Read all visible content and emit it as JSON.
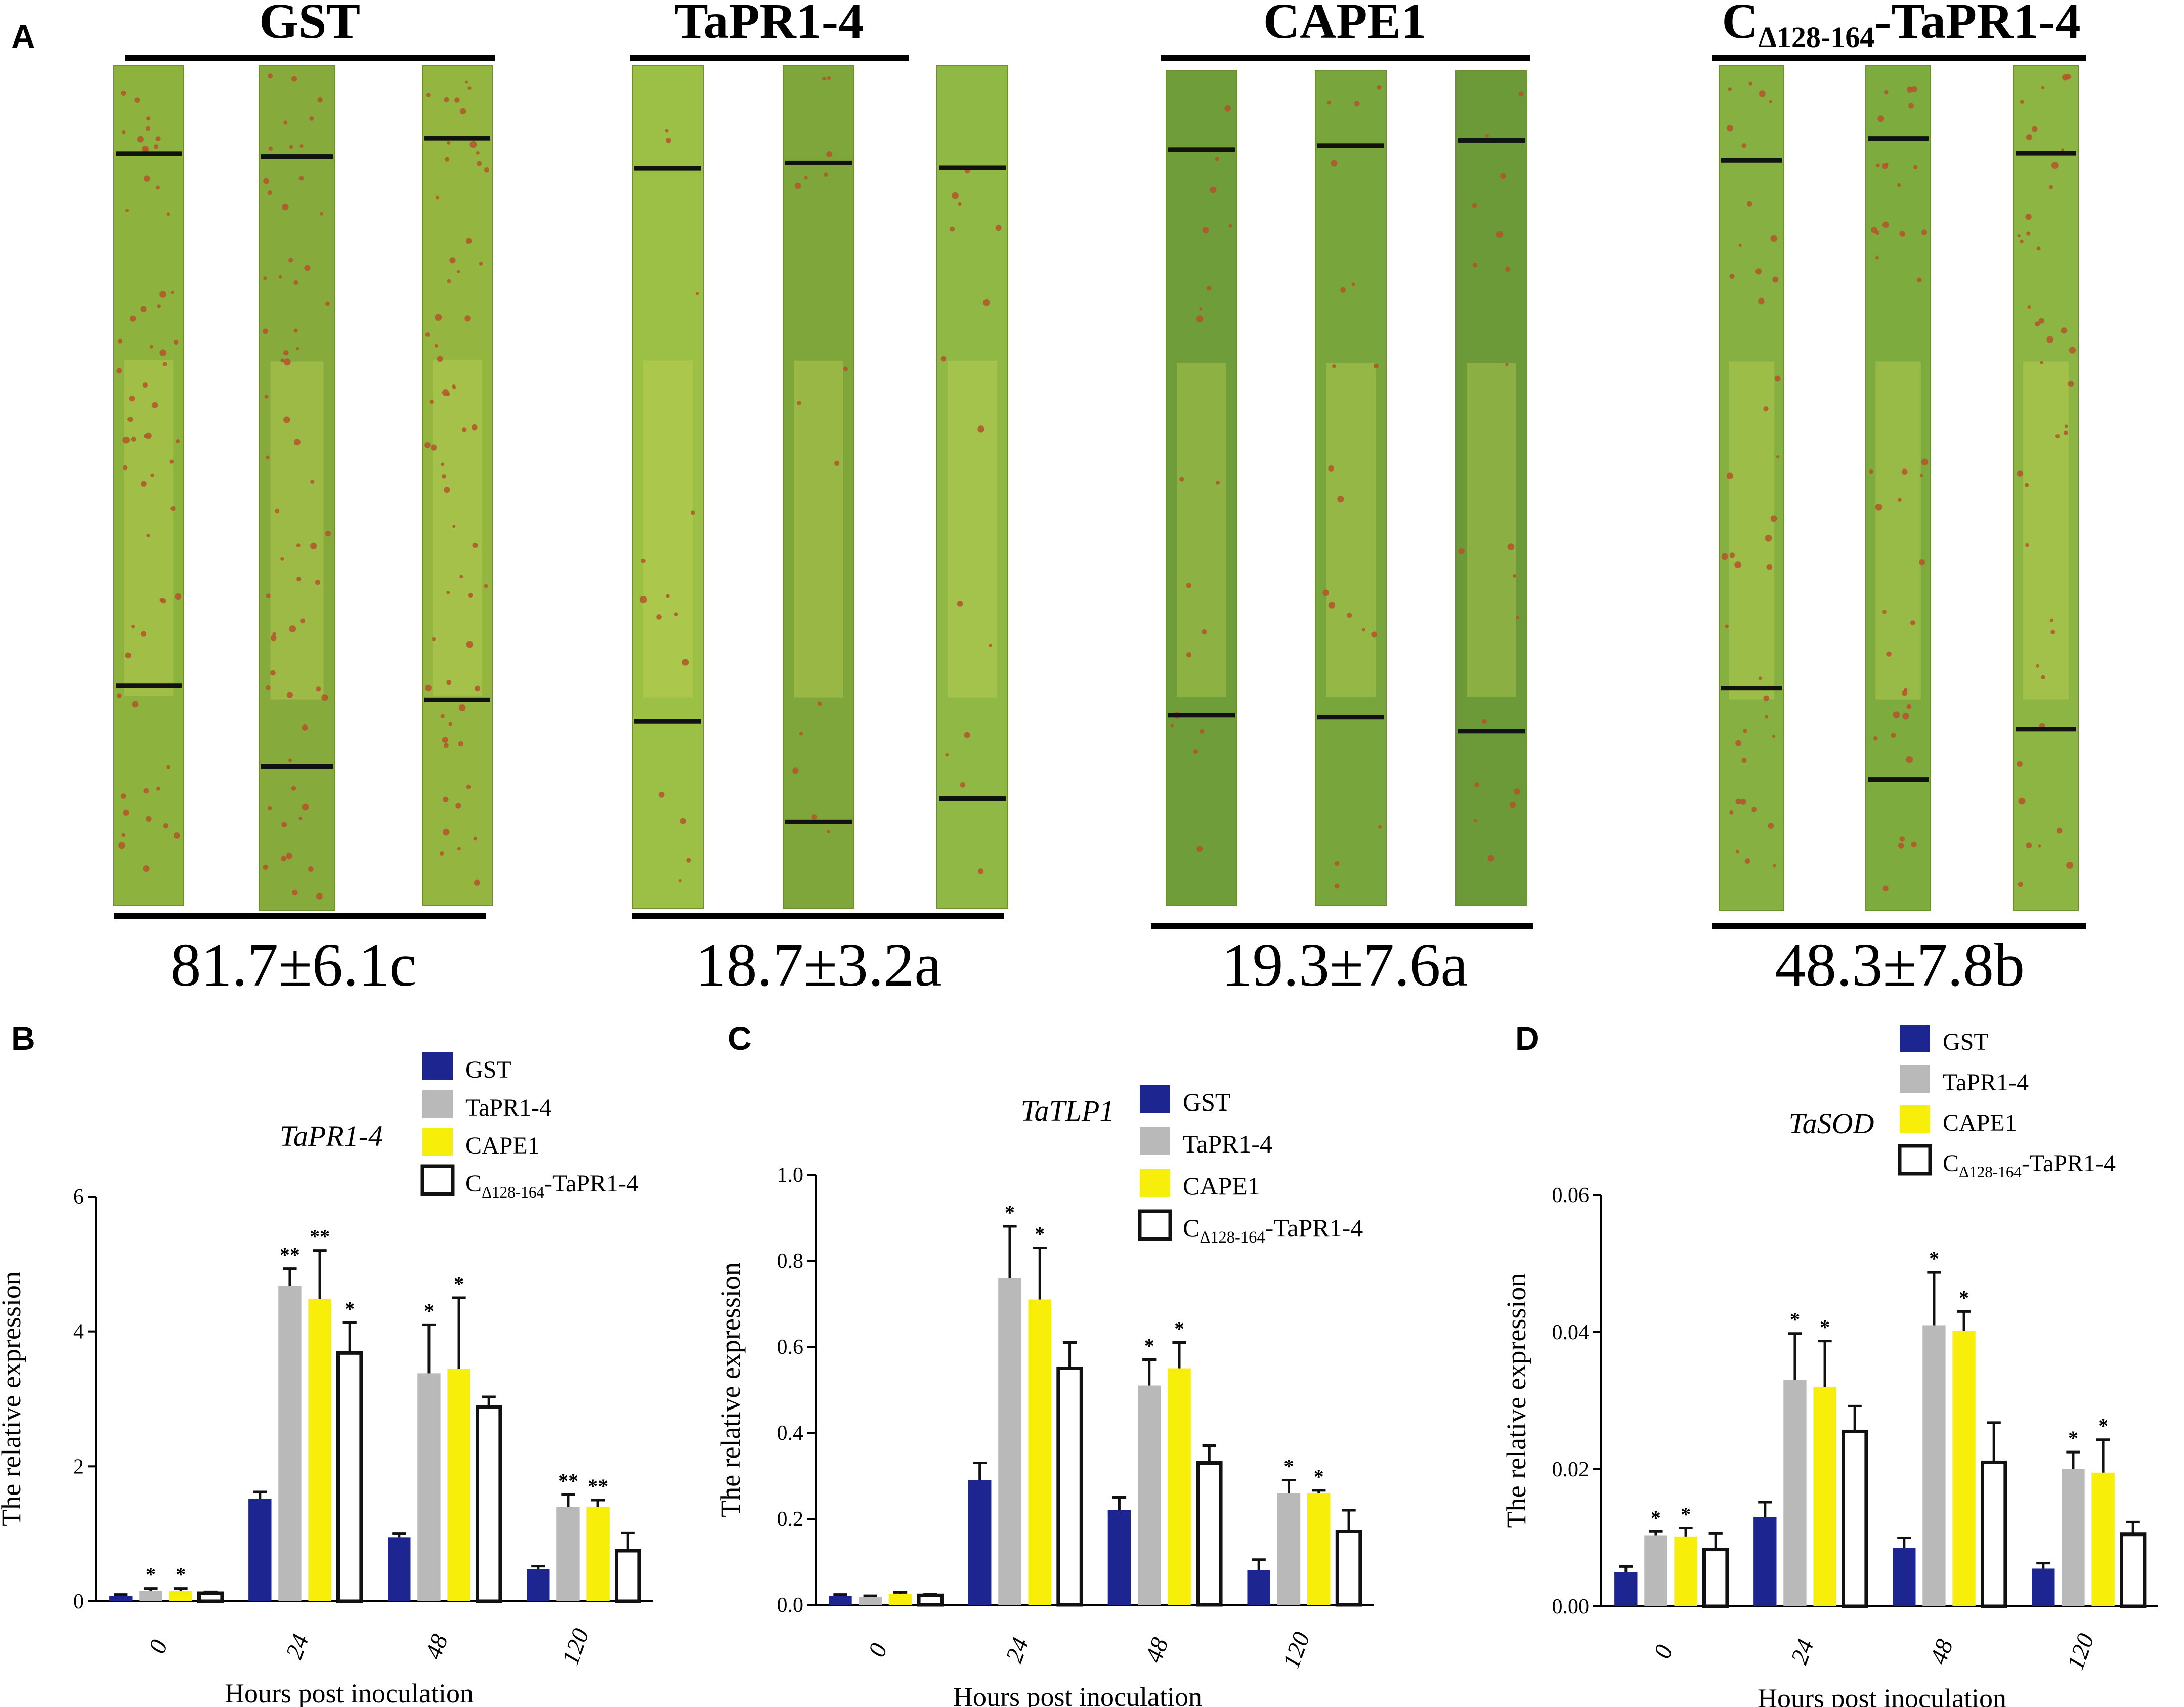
{
  "panel_labels": {
    "a": "A",
    "b": "B",
    "c": "C",
    "d": "D"
  },
  "panel_a": {
    "groups": [
      {
        "title": "GST",
        "score": "81.7±6.1c",
        "leaf_colors": [
          "#8db23e",
          "#86aa3c",
          "#94b641"
        ]
      },
      {
        "title": "TaPR1-4",
        "score": "18.7±3.2a",
        "leaf_colors": [
          "#9cc046",
          "#7fa63a",
          "#8fb845"
        ]
      },
      {
        "title": "CAPE1",
        "score": "19.3±7.6a",
        "leaf_colors": [
          "#6f9d3a",
          "#78a63c",
          "#6c9a38"
        ]
      },
      {
        "title_main": "C",
        "title_sub": "Δ128-164",
        "title_rest": "-TaPR1-4",
        "score": "48.3±7.8b",
        "leaf_colors": [
          "#86b041",
          "#7eab3e",
          "#8cb544"
        ]
      }
    ]
  },
  "colors": {
    "GST": "#1c2590",
    "TaPR1-4": "#b9b9b9",
    "CAPE1": "#f7ef0a",
    "Cdel": "#ffffff",
    "leaf_lesion": "#b5522a",
    "leaf_mark": "#111111"
  },
  "legend_labels": {
    "gst": "GST",
    "tapr": "TaPR1-4",
    "cape": "CAPE1",
    "cdel_main": "C",
    "cdel_sub": "Δ128-164",
    "cdel_rest": "-TaPR1-4"
  },
  "chart_data": [
    {
      "type": "bar",
      "panel": "B",
      "title": "TaPR1-4",
      "xlabel": "Hours post inoculation",
      "ylabel": "The relative expression",
      "categories": [
        "0",
        "24",
        "48",
        "120"
      ],
      "ylim": [
        0,
        6
      ],
      "yticks": [
        "0",
        "2",
        "4",
        "6"
      ],
      "series": [
        {
          "name": "GST",
          "values": [
            0.08,
            1.52,
            0.95,
            0.48
          ],
          "errors": [
            0.02,
            0.1,
            0.05,
            0.04
          ],
          "sig": [
            "",
            "",
            "",
            ""
          ]
        },
        {
          "name": "TaPR1-4",
          "values": [
            0.15,
            4.68,
            3.38,
            1.4
          ],
          "errors": [
            0.04,
            0.25,
            0.72,
            0.18
          ],
          "sig": [
            "*",
            "**",
            "*",
            "**"
          ]
        },
        {
          "name": "CAPE1",
          "values": [
            0.15,
            4.48,
            3.45,
            1.4
          ],
          "errors": [
            0.04,
            0.72,
            1.05,
            0.1
          ],
          "sig": [
            "*",
            "**",
            "*",
            "**"
          ]
        },
        {
          "name": "CΔ128-164-TaPR1-4",
          "values": [
            0.12,
            3.68,
            2.88,
            0.75
          ],
          "errors": [
            0.02,
            0.45,
            0.15,
            0.26
          ],
          "sig": [
            "",
            "*",
            "",
            ""
          ]
        }
      ]
    },
    {
      "type": "bar",
      "panel": "C",
      "title": "TaTLP1",
      "xlabel": "Hours post inoculation",
      "ylabel": "The relative expression",
      "categories": [
        "0",
        "24",
        "48",
        "120"
      ],
      "ylim": [
        0,
        1.0
      ],
      "yticks": [
        "0.0",
        "0.2",
        "0.4",
        "0.6",
        "0.8",
        "1.0"
      ],
      "series": [
        {
          "name": "GST",
          "values": [
            0.02,
            0.29,
            0.22,
            0.08
          ],
          "errors": [
            0.004,
            0.04,
            0.03,
            0.025
          ],
          "sig": [
            "",
            "",
            "",
            ""
          ]
        },
        {
          "name": "TaPR1-4",
          "values": [
            0.018,
            0.76,
            0.51,
            0.26
          ],
          "errors": [
            0.003,
            0.12,
            0.06,
            0.03
          ],
          "sig": [
            "",
            "*",
            "*",
            "*"
          ]
        },
        {
          "name": "CAPE1",
          "values": [
            0.025,
            0.71,
            0.55,
            0.26
          ],
          "errors": [
            0.004,
            0.12,
            0.06,
            0.006
          ],
          "sig": [
            "",
            "*",
            "*",
            "*"
          ]
        },
        {
          "name": "CΔ128-164-TaPR1-4",
          "values": [
            0.022,
            0.55,
            0.33,
            0.17
          ],
          "errors": [
            0.003,
            0.06,
            0.04,
            0.05
          ],
          "sig": [
            "",
            "",
            "",
            ""
          ]
        }
      ]
    },
    {
      "type": "bar",
      "panel": "D",
      "title": "TaSOD",
      "xlabel": "Hours post inoculation",
      "ylabel": "The relative expression",
      "categories": [
        "0",
        "24",
        "48",
        "120"
      ],
      "ylim": [
        0,
        0.06
      ],
      "yticks": [
        "0.00",
        "0.02",
        "0.04",
        "0.06"
      ],
      "series": [
        {
          "name": "GST",
          "values": [
            0.005,
            0.013,
            0.0085,
            0.0055
          ],
          "errors": [
            0.0008,
            0.0022,
            0.0015,
            0.0008
          ],
          "sig": [
            "",
            "",
            "",
            ""
          ]
        },
        {
          "name": "TaPR1-4",
          "values": [
            0.0103,
            0.033,
            0.041,
            0.02
          ],
          "errors": [
            0.0006,
            0.0068,
            0.0077,
            0.0025
          ],
          "sig": [
            "*",
            "*",
            "*",
            "*"
          ]
        },
        {
          "name": "CAPE1",
          "values": [
            0.0102,
            0.032,
            0.0402,
            0.0195
          ],
          "errors": [
            0.0012,
            0.0067,
            0.0028,
            0.0048
          ],
          "sig": [
            "*",
            "*",
            "*",
            "*"
          ]
        },
        {
          "name": "CΔ128-164-TaPR1-4",
          "values": [
            0.0083,
            0.0255,
            0.021,
            0.0105
          ],
          "errors": [
            0.0023,
            0.0037,
            0.0058,
            0.0018
          ],
          "sig": [
            "",
            "",
            "",
            ""
          ]
        }
      ]
    }
  ]
}
